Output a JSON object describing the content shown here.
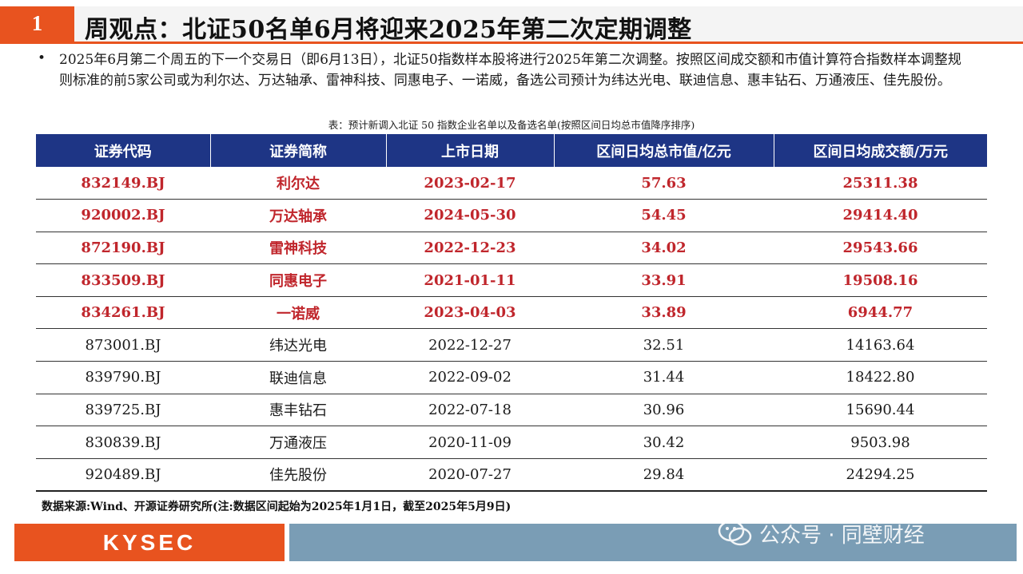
{
  "header": {
    "number": "1",
    "title": "周观点：北证50名单6月将迎来2025年第二次定期调整"
  },
  "paragraph": "2025年6月第二个周五的下一个交易日（即6月13日），北证50指数样本股将进行2025年第二次调整。按照区间成交额和市值计算符合指数样本调整规则标准的前5家公司或为利尔达、万达轴承、雷神科技、同惠电子、一诺威，备选公司预计为纬达光电、联迪信息、惠丰钻石、万通液压、佳先股份。",
  "table": {
    "caption": "表：预计新调入北证 50 指数企业名单以及备选名单(按照区间日均总市值降序排序)",
    "headers": [
      "证券代码",
      "证券简称",
      "上市日期",
      "区间日均总市值/亿元",
      "区间日均成交额/万元"
    ],
    "rows": [
      {
        "code": "832149.BJ",
        "name": "利尔达",
        "date": "2023-02-17",
        "mcap": "57.63",
        "turnover": "25311.38",
        "highlight": true
      },
      {
        "code": "920002.BJ",
        "name": "万达轴承",
        "date": "2024-05-30",
        "mcap": "54.45",
        "turnover": "29414.40",
        "highlight": true
      },
      {
        "code": "872190.BJ",
        "name": "雷神科技",
        "date": "2022-12-23",
        "mcap": "34.02",
        "turnover": "29543.66",
        "highlight": true
      },
      {
        "code": "833509.BJ",
        "name": "同惠电子",
        "date": "2021-01-11",
        "mcap": "33.91",
        "turnover": "19508.16",
        "highlight": true
      },
      {
        "code": "834261.BJ",
        "name": "一诺威",
        "date": "2023-04-03",
        "mcap": "33.89",
        "turnover": "6944.77",
        "highlight": true
      },
      {
        "code": "873001.BJ",
        "name": "纬达光电",
        "date": "2022-12-27",
        "mcap": "32.51",
        "turnover": "14163.64",
        "highlight": false
      },
      {
        "code": "839790.BJ",
        "name": "联迪信息",
        "date": "2022-09-02",
        "mcap": "31.44",
        "turnover": "18422.80",
        "highlight": false
      },
      {
        "code": "839725.BJ",
        "name": "惠丰钻石",
        "date": "2022-07-18",
        "mcap": "30.96",
        "turnover": "15690.44",
        "highlight": false
      },
      {
        "code": "830839.BJ",
        "name": "万通液压",
        "date": "2020-11-09",
        "mcap": "30.42",
        "turnover": "9503.98",
        "highlight": false
      },
      {
        "code": "920489.BJ",
        "name": "佳先股份",
        "date": "2020-07-27",
        "mcap": "29.84",
        "turnover": "24294.25",
        "highlight": false
      }
    ]
  },
  "source": "数据来源:Wind、开源证券研究所(注:数据区间起始为2025年1月1日，截至2025年5月9日)",
  "footer": {
    "logo": "KYSEC",
    "watermark": "公众号 · 同壁财经"
  },
  "colors": {
    "accent": "#e8531f",
    "table_header": "#1e3585",
    "highlight_text": "#c0262c",
    "footer_right": "#7a9db5"
  }
}
